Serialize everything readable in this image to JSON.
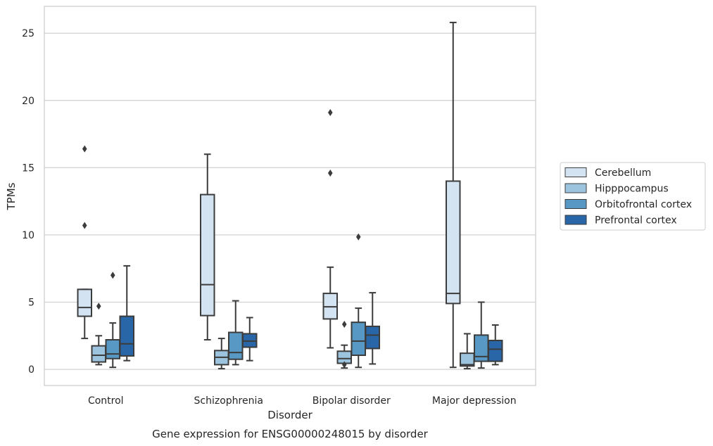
{
  "caption": "Gene expression for ENSG00000248015 by disorder",
  "chart_data": {
    "type": "box",
    "xlabel": "Disorder",
    "ylabel": "TPMs",
    "ylim": [
      -1.2,
      27.0
    ],
    "yticks": [
      0,
      5,
      10,
      15,
      20,
      25
    ],
    "grid": "horizontal",
    "legend_position": "right",
    "categories": [
      "Control",
      "Schizophrenia",
      "Bipolar disorder",
      "Major depression"
    ],
    "series": [
      {
        "name": "Cerebellum",
        "color": "#d4e3f2",
        "boxes": [
          {
            "whislo": 2.3,
            "q1": 3.95,
            "med": 4.6,
            "q3": 5.95,
            "whishi": 5.95,
            "fliers": [
              10.7,
              16.4
            ]
          },
          {
            "whislo": 2.2,
            "q1": 4.0,
            "med": 6.3,
            "q3": 13.0,
            "whishi": 16.0,
            "fliers": []
          },
          {
            "whislo": 1.6,
            "q1": 3.75,
            "med": 4.65,
            "q3": 5.65,
            "whishi": 7.6,
            "fliers": [
              14.6,
              19.1
            ]
          },
          {
            "whislo": 0.15,
            "q1": 4.9,
            "med": 5.65,
            "q3": 14.0,
            "whishi": 25.8,
            "fliers": []
          }
        ]
      },
      {
        "name": "Hipppocampus",
        "color": "#9dc4de",
        "boxes": [
          {
            "whislo": 0.35,
            "q1": 0.55,
            "med": 1.05,
            "q3": 1.75,
            "whishi": 2.5,
            "fliers": [
              4.7
            ]
          },
          {
            "whislo": 0.05,
            "q1": 0.35,
            "med": 0.9,
            "q3": 1.4,
            "whishi": 2.3,
            "fliers": []
          },
          {
            "whislo": 0.1,
            "q1": 0.45,
            "med": 0.8,
            "q3": 1.35,
            "whishi": 1.8,
            "fliers": [
              0.35,
              3.35
            ]
          },
          {
            "whislo": 0.05,
            "q1": 0.25,
            "med": 0.35,
            "q3": 1.2,
            "whishi": 2.65,
            "fliers": []
          }
        ]
      },
      {
        "name": "Orbitofrontal cortex",
        "color": "#5898c5",
        "boxes": [
          {
            "whislo": 0.15,
            "q1": 0.8,
            "med": 1.15,
            "q3": 2.2,
            "whishi": 3.45,
            "fliers": [
              7.0
            ]
          },
          {
            "whislo": 0.35,
            "q1": 0.75,
            "med": 1.25,
            "q3": 2.75,
            "whishi": 5.1,
            "fliers": []
          },
          {
            "whislo": 0.15,
            "q1": 1.05,
            "med": 2.1,
            "q3": 3.5,
            "whishi": 4.55,
            "fliers": [
              9.85
            ]
          },
          {
            "whislo": 0.1,
            "q1": 0.6,
            "med": 0.95,
            "q3": 2.55,
            "whishi": 5.0,
            "fliers": []
          }
        ]
      },
      {
        "name": "Prefrontal cortex",
        "color": "#2866a7",
        "boxes": [
          {
            "whislo": 0.65,
            "q1": 1.0,
            "med": 1.9,
            "q3": 3.95,
            "whishi": 7.7,
            "fliers": []
          },
          {
            "whislo": 0.65,
            "q1": 1.65,
            "med": 2.1,
            "q3": 2.65,
            "whishi": 3.85,
            "fliers": []
          },
          {
            "whislo": 0.4,
            "q1": 1.55,
            "med": 2.55,
            "q3": 3.2,
            "whishi": 5.7,
            "fliers": []
          },
          {
            "whislo": 0.35,
            "q1": 0.6,
            "med": 1.5,
            "q3": 2.15,
            "whishi": 3.3,
            "fliers": []
          }
        ]
      }
    ]
  }
}
